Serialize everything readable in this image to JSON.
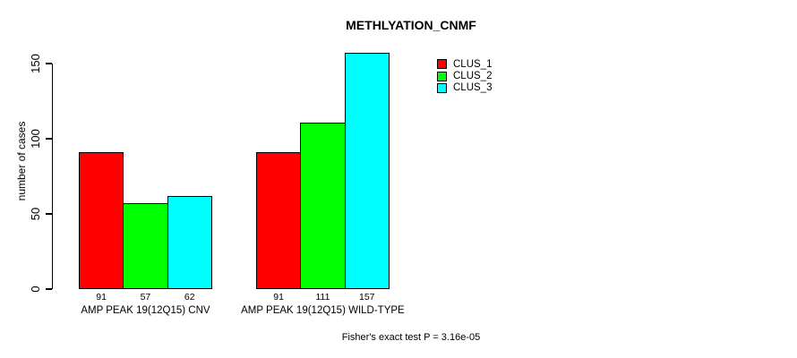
{
  "title": "METHLYATION_CNMF",
  "y_axis": {
    "label": "number of cases",
    "ticks": [
      0,
      50,
      100,
      150
    ]
  },
  "legend": {
    "position": "top-right",
    "items": [
      {
        "label": "CLUS_1",
        "color": "#ff0000"
      },
      {
        "label": "CLUS_2",
        "color": "#00ff00"
      },
      {
        "label": "CLUS_3",
        "color": "#00ffff"
      }
    ]
  },
  "footnote": "Fisher's exact test P = 3.16e-05",
  "chart_data": {
    "type": "bar",
    "title": "METHLYATION_CNMF",
    "xlabel": "",
    "ylabel": "number of cases",
    "ylim": [
      0,
      160
    ],
    "yticks": [
      0,
      50,
      100,
      150
    ],
    "grid": false,
    "legend_position": "top-right",
    "categories": [
      "AMP PEAK 19(12Q15) CNV",
      "AMP PEAK 19(12Q15) WILD-TYPE"
    ],
    "series": [
      {
        "name": "CLUS_1",
        "color": "#ff0000",
        "values": [
          91,
          91
        ]
      },
      {
        "name": "CLUS_2",
        "color": "#00ff00",
        "values": [
          57,
          111
        ]
      },
      {
        "name": "CLUS_3",
        "color": "#00ffff",
        "values": [
          62,
          157
        ]
      }
    ],
    "bar_value_labels": [
      [
        91,
        57,
        62
      ],
      [
        91,
        111,
        157
      ]
    ],
    "annotation": "Fisher's exact test P = 3.16e-05"
  }
}
